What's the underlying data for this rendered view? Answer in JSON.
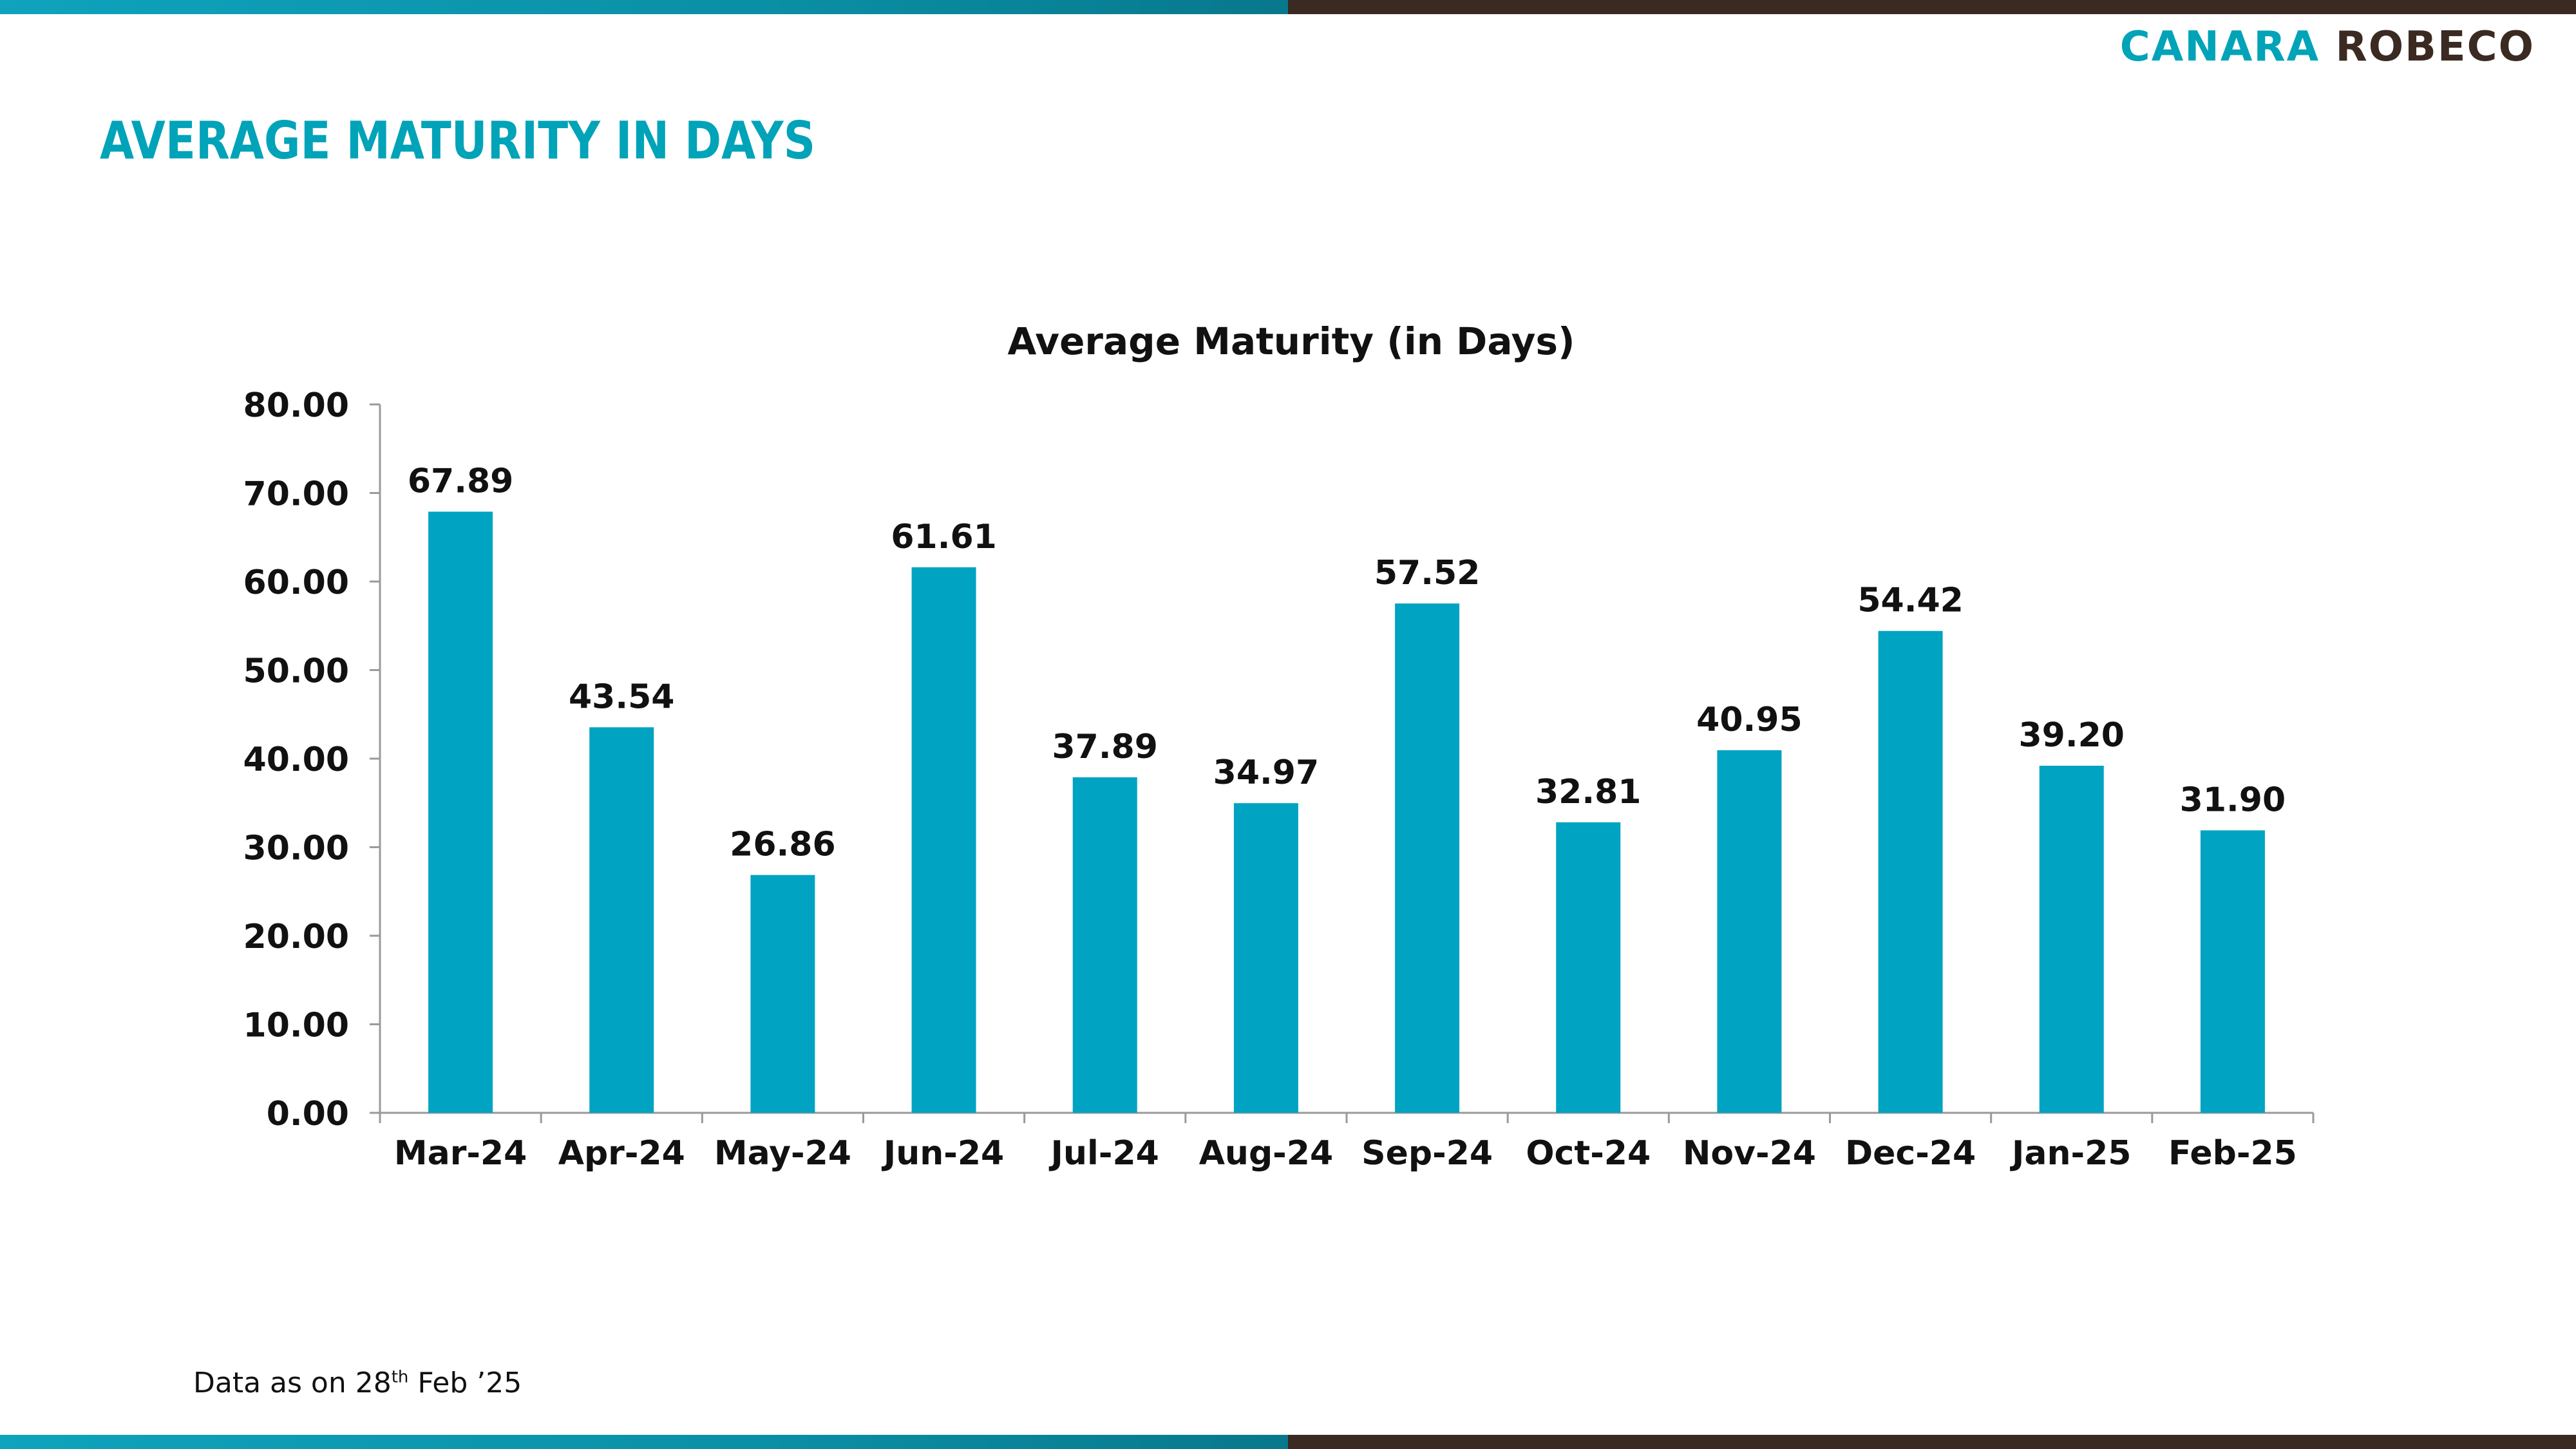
{
  "header": {
    "logo_part1": "CANARA",
    "logo_part2": "ROBECO",
    "page_title": "AVERAGE MATURITY IN DAYS"
  },
  "footer": {
    "note_prefix": "Data as on 28",
    "note_sup": "th",
    "note_suffix": " Feb  ’25"
  },
  "colors": {
    "bar": "#00a3c2",
    "accent_teal": "#00a3b8",
    "accent_brown": "#3b2a22"
  },
  "chart_data": {
    "type": "bar",
    "title": "Average Maturity (in Days)",
    "categories": [
      "Mar-24",
      "Apr-24",
      "May-24",
      "Jun-24",
      "Jul-24",
      "Aug-24",
      "Sep-24",
      "Oct-24",
      "Nov-24",
      "Dec-24",
      "Jan-25",
      "Feb-25"
    ],
    "values": [
      67.89,
      43.54,
      26.86,
      61.61,
      37.89,
      34.97,
      57.52,
      32.81,
      40.95,
      54.42,
      39.2,
      31.9
    ],
    "data_labels": [
      "67.89",
      "43.54",
      "26.86",
      "61.61",
      "37.89",
      "34.97",
      "57.52",
      "32.81",
      "40.95",
      "54.42",
      "39.20",
      "31.90"
    ],
    "yticks": [
      "0.00",
      "10.00",
      "20.00",
      "30.00",
      "40.00",
      "50.00",
      "60.00",
      "70.00",
      "80.00"
    ],
    "ylim": [
      0,
      80
    ],
    "xlabel": "",
    "ylabel": "",
    "grid": false,
    "legend": "none"
  }
}
